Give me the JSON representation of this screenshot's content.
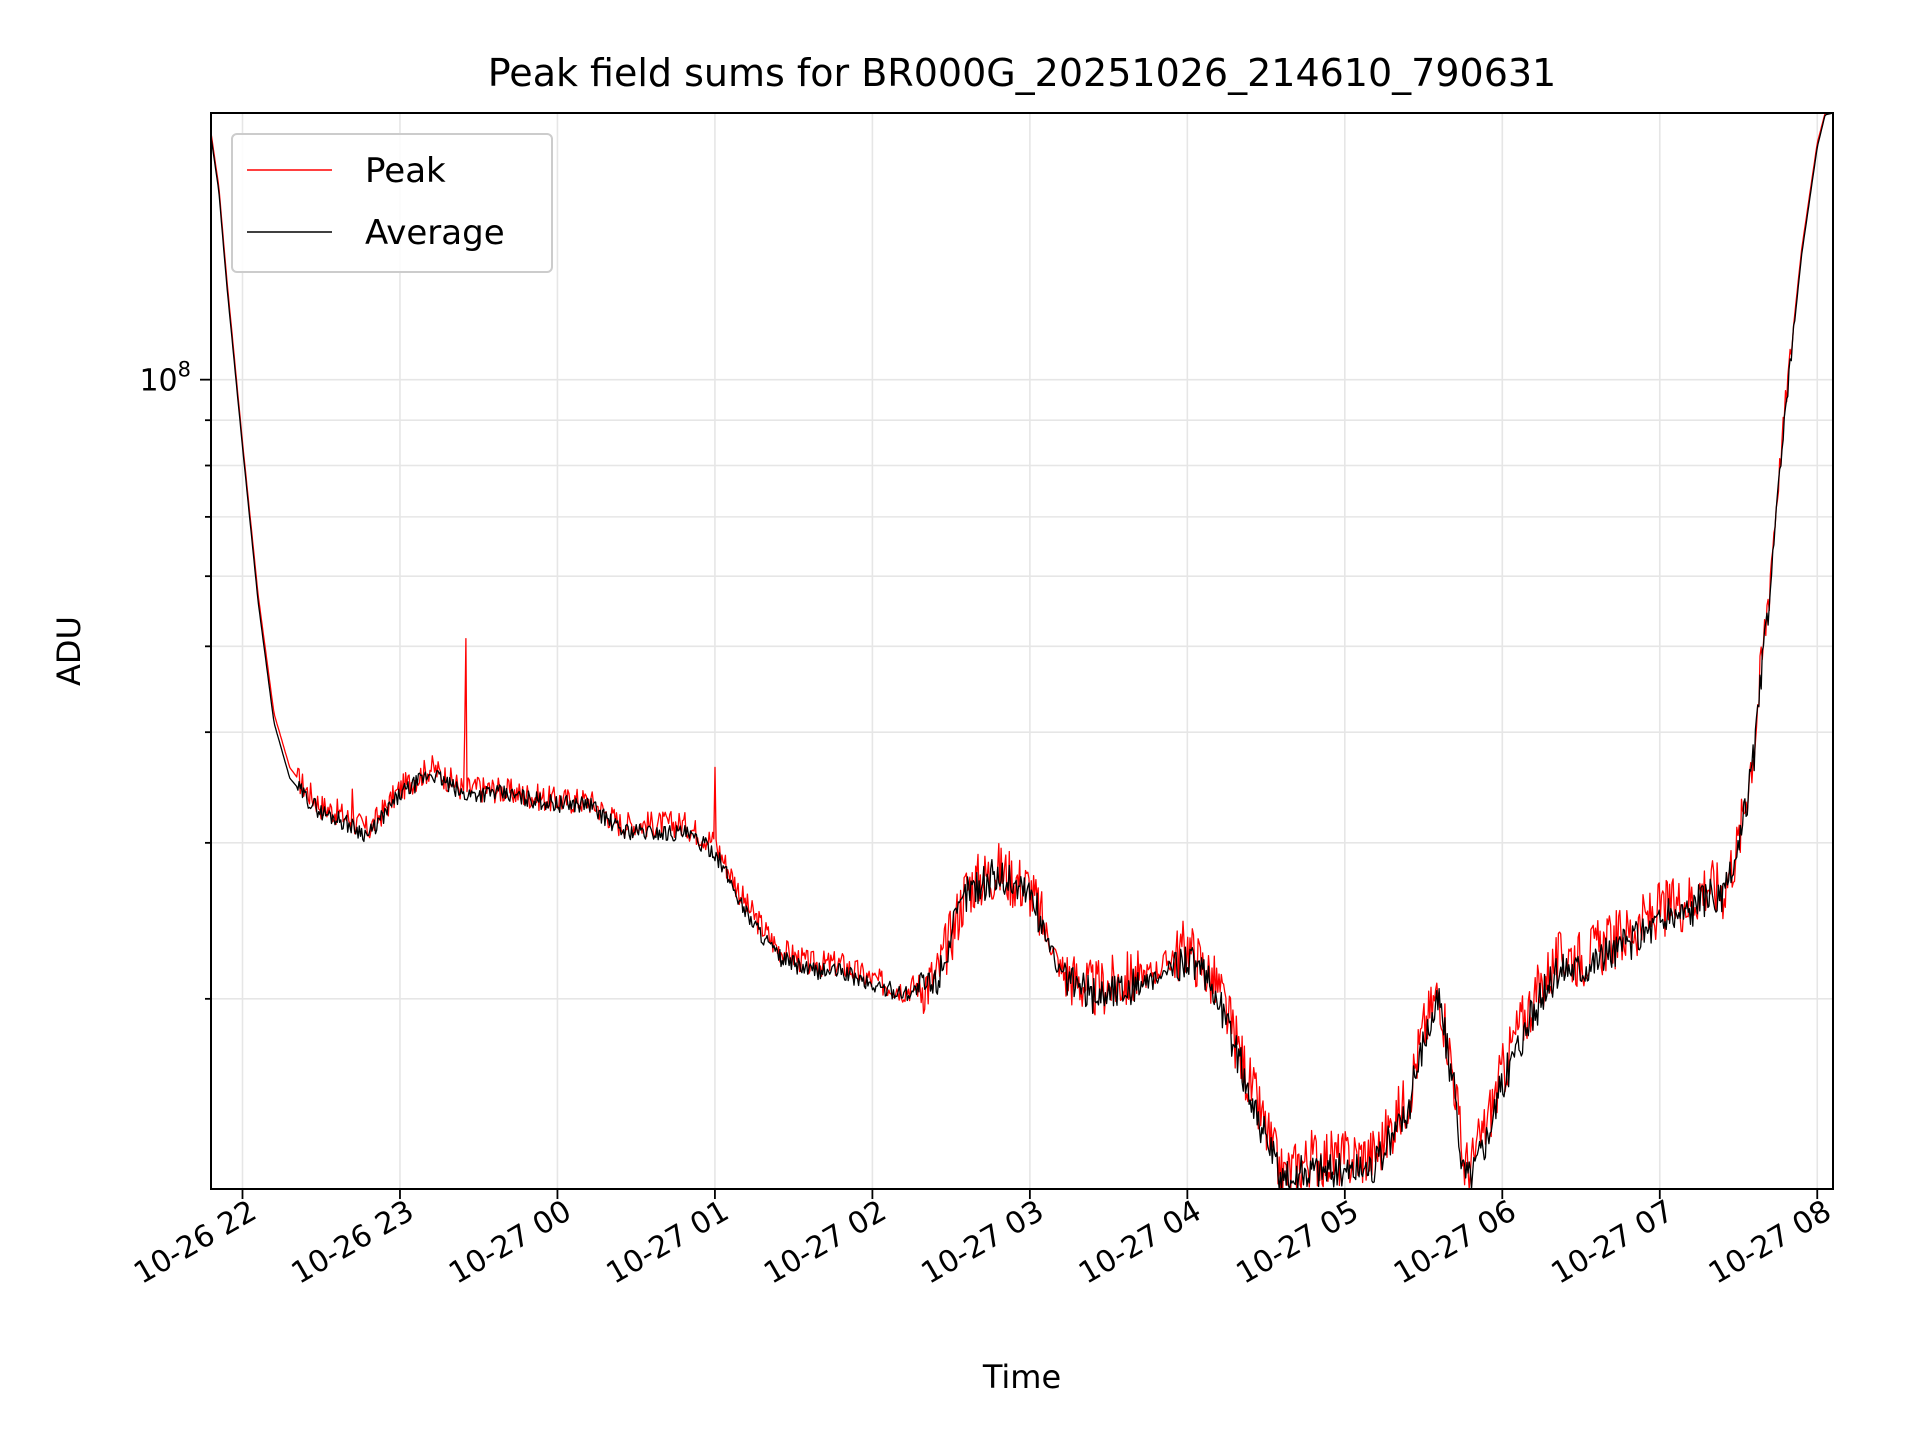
{
  "chart_data": {
    "type": "line",
    "title": "Peak field sums for BR000G_20251026_214610_790631",
    "xlabel": "Time",
    "ylabel": "ADU",
    "yscale": "log",
    "ylim": [
      12200000,
      200000000
    ],
    "xlim": [
      -0.2,
      10.1
    ],
    "grid": true,
    "legend_position": "top-left",
    "x_unit": "hours since 10-26 22:00",
    "x_ticks": [
      0,
      1,
      2,
      3,
      4,
      5,
      6,
      7,
      8,
      9,
      10
    ],
    "x_tick_labels": [
      "10-26 22",
      "10-26 23",
      "10-27 00",
      "10-27 01",
      "10-27 02",
      "10-27 03",
      "10-27 04",
      "10-27 05",
      "10-27 06",
      "10-27 07",
      "10-27 08"
    ],
    "y_major_ticks": [
      100000000
    ],
    "y_major_tick_labels": [
      "10",
      "8"
    ],
    "y_minor_ticks": [
      20000000,
      30000000,
      40000000,
      50000000,
      60000000,
      70000000,
      80000000,
      90000000
    ],
    "series": [
      {
        "name": "Peak",
        "color": "#ff0000",
        "x": [
          -0.2,
          -0.15,
          -0.1,
          0.0,
          0.1,
          0.2,
          0.3,
          0.4,
          0.5,
          0.6,
          0.8,
          1.0,
          1.2,
          1.4,
          1.6,
          1.8,
          2.0,
          2.2,
          2.4,
          2.6,
          2.8,
          3.0,
          3.2,
          3.4,
          3.6,
          3.8,
          4.0,
          4.2,
          4.4,
          4.6,
          4.8,
          5.0,
          5.2,
          5.4,
          5.6,
          5.8,
          6.0,
          6.2,
          6.4,
          6.6,
          6.8,
          7.0,
          7.2,
          7.4,
          7.5,
          7.6,
          7.7,
          7.75,
          7.8,
          7.9,
          8.0,
          8.1,
          8.2,
          8.3,
          8.4,
          8.5,
          8.6,
          8.7,
          8.8,
          8.9,
          9.0,
          9.1,
          9.2,
          9.3,
          9.4,
          9.5,
          9.6,
          9.7,
          9.8,
          9.9,
          10.0,
          10.05,
          10.1
        ],
        "values": [
          190000000,
          165000000,
          130000000,
          85000000,
          57000000,
          42000000,
          36500000,
          34500000,
          33000000,
          32500000,
          31000000,
          34500000,
          36500000,
          34500000,
          34500000,
          34000000,
          33500000,
          33500000,
          31500000,
          31500000,
          31500000,
          30000000,
          25500000,
          22800000,
          21900000,
          21900000,
          21000000,
          20500000,
          21000000,
          26800000,
          28000000,
          26700000,
          21500000,
          20500000,
          21000000,
          21500000,
          23000000,
          20500000,
          16000000,
          12600000,
          13300000,
          13200000,
          13400000,
          15500000,
          18500000,
          20500000,
          16000000,
          13100000,
          12900000,
          14500000,
          16500000,
          18500000,
          20000000,
          21500000,
          22500000,
          22300000,
          22800000,
          23300000,
          23800000,
          24500000,
          25200000,
          25600000,
          26000000,
          27000000,
          26500000,
          30000000,
          39000000,
          60000000,
          95000000,
          140000000,
          185000000,
          200000000,
          200000000
        ]
      },
      {
        "name": "Average",
        "color": "#000000",
        "x": [
          -0.2,
          -0.15,
          -0.1,
          0.0,
          0.1,
          0.2,
          0.3,
          0.4,
          0.5,
          0.6,
          0.8,
          1.0,
          1.2,
          1.4,
          1.6,
          1.8,
          2.0,
          2.2,
          2.4,
          2.6,
          2.8,
          3.0,
          3.2,
          3.4,
          3.6,
          3.8,
          4.0,
          4.2,
          4.4,
          4.6,
          4.8,
          5.0,
          5.2,
          5.4,
          5.6,
          5.8,
          6.0,
          6.2,
          6.4,
          6.6,
          6.8,
          7.0,
          7.2,
          7.4,
          7.5,
          7.6,
          7.7,
          7.75,
          7.8,
          7.9,
          8.0,
          8.1,
          8.2,
          8.3,
          8.4,
          8.5,
          8.6,
          8.7,
          8.8,
          8.9,
          9.0,
          9.1,
          9.2,
          9.3,
          9.4,
          9.5,
          9.6,
          9.7,
          9.8,
          9.9,
          10.0,
          10.05,
          10.1
        ],
        "values": [
          188000000,
          163000000,
          128000000,
          84000000,
          56000000,
          41000000,
          35500000,
          33800000,
          32500000,
          32000000,
          30600000,
          34000000,
          36000000,
          34000000,
          34200000,
          33700000,
          33200000,
          33200000,
          31000000,
          30800000,
          30800000,
          29300000,
          25000000,
          22300000,
          21500000,
          21500000,
          20700000,
          20300000,
          20800000,
          26500000,
          27600000,
          26400000,
          21200000,
          20200000,
          20600000,
          21000000,
          22400000,
          20000000,
          15600000,
          12400000,
          12900000,
          12800000,
          13000000,
          15000000,
          18000000,
          20000000,
          15500000,
          12800000,
          12600000,
          14000000,
          16000000,
          17800000,
          19300000,
          20800000,
          21800000,
          21700000,
          22200000,
          22600000,
          23100000,
          23800000,
          24500000,
          24900000,
          25300000,
          26200000,
          25800000,
          29300000,
          38000000,
          58500000,
          93000000,
          138000000,
          183000000,
          199000000,
          200000000
        ]
      }
    ]
  }
}
